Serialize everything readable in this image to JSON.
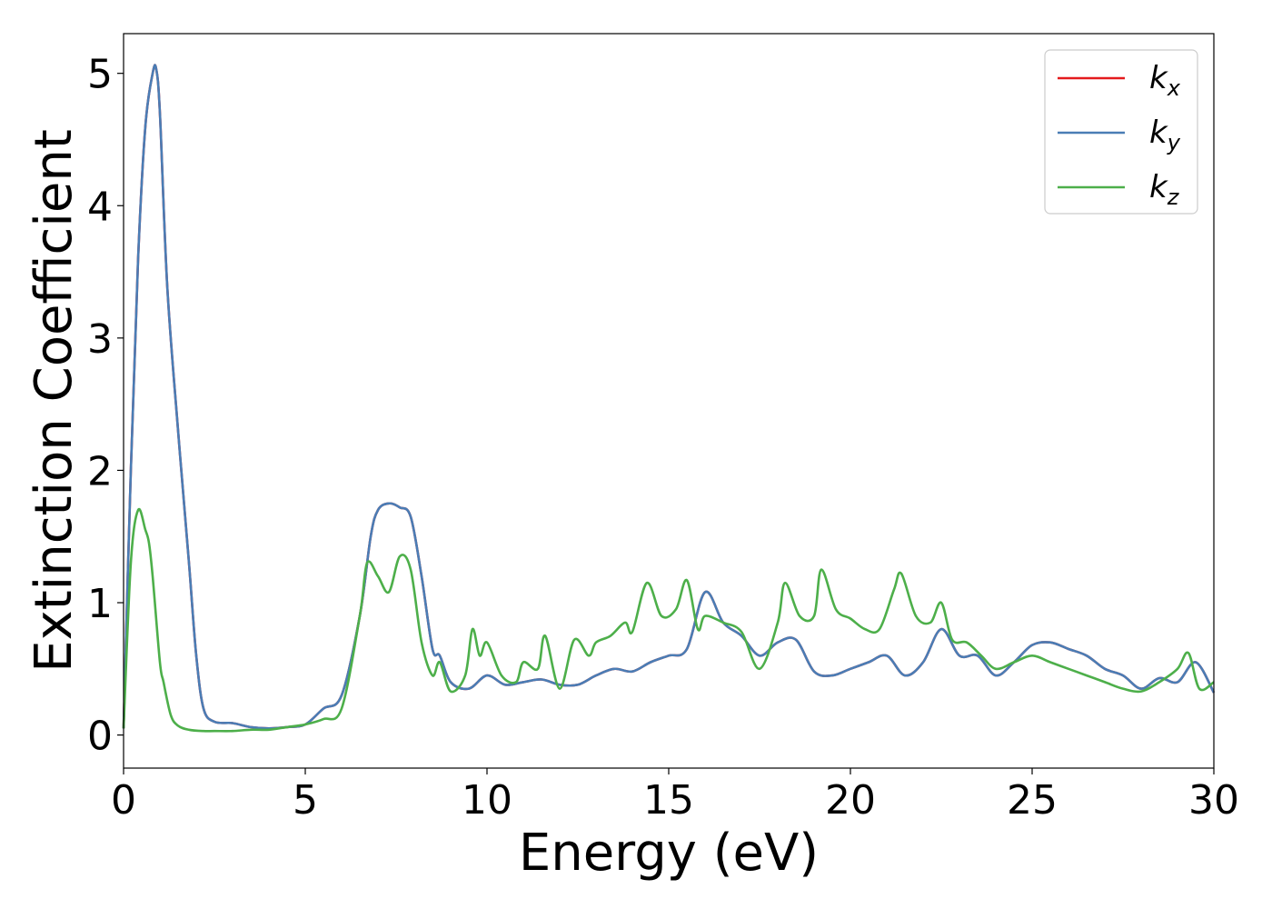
{
  "chart_data": {
    "type": "line",
    "xlabel": "Energy (eV)",
    "ylabel": "Extinction Coefficient",
    "xlim": [
      0,
      30
    ],
    "ylim": [
      -0.25,
      5.3
    ],
    "xticks": [
      0,
      5,
      10,
      15,
      20,
      25,
      30
    ],
    "yticks": [
      0,
      1,
      2,
      3,
      4,
      5
    ],
    "grid": false,
    "legend_position": "top-right",
    "series": [
      {
        "name": "k",
        "sub": "x",
        "color": "#e41a1c",
        "x": [
          0,
          0.2,
          0.4,
          0.6,
          0.8,
          0.9,
          1.0,
          1.2,
          1.5,
          1.8,
          2.0,
          2.2,
          2.5,
          3.0,
          3.5,
          4.0,
          4.5,
          5.0,
          5.5,
          6.0,
          6.5,
          6.8,
          7.0,
          7.3,
          7.6,
          7.9,
          8.2,
          8.5,
          8.7,
          9.0,
          9.5,
          10.0,
          10.5,
          11.0,
          11.5,
          12.0,
          12.5,
          13.0,
          13.5,
          14.0,
          14.5,
          15.0,
          15.5,
          16.0,
          16.5,
          17.0,
          17.5,
          18.0,
          18.5,
          19.0,
          19.5,
          20.0,
          20.5,
          21.0,
          21.5,
          22.0,
          22.5,
          23.0,
          23.5,
          24.0,
          24.5,
          25.0,
          25.5,
          26.0,
          26.5,
          27.0,
          27.5,
          28.0,
          28.5,
          29.0,
          29.5,
          30.0
        ],
        "y": [
          0.05,
          2.0,
          3.6,
          4.6,
          5.0,
          5.03,
          4.7,
          3.4,
          2.3,
          1.3,
          0.6,
          0.2,
          0.1,
          0.09,
          0.06,
          0.05,
          0.06,
          0.08,
          0.2,
          0.3,
          0.9,
          1.5,
          1.7,
          1.75,
          1.72,
          1.65,
          1.2,
          0.65,
          0.6,
          0.4,
          0.35,
          0.45,
          0.38,
          0.4,
          0.42,
          0.38,
          0.38,
          0.45,
          0.5,
          0.48,
          0.55,
          0.6,
          0.65,
          1.08,
          0.85,
          0.75,
          0.6,
          0.7,
          0.72,
          0.48,
          0.45,
          0.5,
          0.55,
          0.6,
          0.45,
          0.55,
          0.8,
          0.6,
          0.6,
          0.45,
          0.55,
          0.68,
          0.7,
          0.65,
          0.6,
          0.5,
          0.45,
          0.35,
          0.43,
          0.4,
          0.55,
          0.32
        ]
      },
      {
        "name": "k",
        "sub": "y",
        "color": "#4a7db5",
        "x": [
          0,
          0.2,
          0.4,
          0.6,
          0.8,
          0.9,
          1.0,
          1.2,
          1.5,
          1.8,
          2.0,
          2.2,
          2.5,
          3.0,
          3.5,
          4.0,
          4.5,
          5.0,
          5.5,
          6.0,
          6.5,
          6.8,
          7.0,
          7.3,
          7.6,
          7.9,
          8.2,
          8.5,
          8.7,
          9.0,
          9.5,
          10.0,
          10.5,
          11.0,
          11.5,
          12.0,
          12.5,
          13.0,
          13.5,
          14.0,
          14.5,
          15.0,
          15.5,
          16.0,
          16.5,
          17.0,
          17.5,
          18.0,
          18.5,
          19.0,
          19.5,
          20.0,
          20.5,
          21.0,
          21.5,
          22.0,
          22.5,
          23.0,
          23.5,
          24.0,
          24.5,
          25.0,
          25.5,
          26.0,
          26.5,
          27.0,
          27.5,
          28.0,
          28.5,
          29.0,
          29.5,
          30.0
        ],
        "y": [
          0.05,
          2.0,
          3.6,
          4.6,
          5.0,
          5.03,
          4.7,
          3.4,
          2.3,
          1.3,
          0.6,
          0.2,
          0.1,
          0.09,
          0.06,
          0.05,
          0.06,
          0.08,
          0.2,
          0.3,
          0.9,
          1.5,
          1.7,
          1.75,
          1.72,
          1.65,
          1.2,
          0.65,
          0.6,
          0.4,
          0.35,
          0.45,
          0.38,
          0.4,
          0.42,
          0.38,
          0.38,
          0.45,
          0.5,
          0.48,
          0.55,
          0.6,
          0.65,
          1.08,
          0.85,
          0.75,
          0.6,
          0.7,
          0.72,
          0.48,
          0.45,
          0.5,
          0.55,
          0.6,
          0.45,
          0.55,
          0.8,
          0.6,
          0.6,
          0.45,
          0.55,
          0.68,
          0.7,
          0.65,
          0.6,
          0.5,
          0.45,
          0.35,
          0.43,
          0.4,
          0.55,
          0.32
        ]
      },
      {
        "name": "k",
        "sub": "z",
        "color": "#4daf4a",
        "x": [
          0,
          0.2,
          0.4,
          0.6,
          0.7,
          0.8,
          1.0,
          1.1,
          1.3,
          1.5,
          1.8,
          2.2,
          2.5,
          3.0,
          3.5,
          4.0,
          4.5,
          5.0,
          5.5,
          6.0,
          6.5,
          6.7,
          7.0,
          7.3,
          7.6,
          7.9,
          8.2,
          8.5,
          8.7,
          9.0,
          9.4,
          9.6,
          9.8,
          10.0,
          10.4,
          10.8,
          11.0,
          11.4,
          11.6,
          12.0,
          12.4,
          12.8,
          13.0,
          13.4,
          13.8,
          14.0,
          14.4,
          14.8,
          15.2,
          15.5,
          15.8,
          16.0,
          16.5,
          17.0,
          17.5,
          18.0,
          18.2,
          18.6,
          19.0,
          19.2,
          19.6,
          20.0,
          20.4,
          20.8,
          21.2,
          21.4,
          21.8,
          22.2,
          22.5,
          22.8,
          23.2,
          23.6,
          24.0,
          24.5,
          25.0,
          25.5,
          26.0,
          26.5,
          27.0,
          27.5,
          28.0,
          28.5,
          29.0,
          29.3,
          29.6,
          30.0
        ],
        "y": [
          0.05,
          1.3,
          1.7,
          1.55,
          1.45,
          1.2,
          0.55,
          0.4,
          0.15,
          0.07,
          0.04,
          0.03,
          0.03,
          0.03,
          0.04,
          0.04,
          0.06,
          0.08,
          0.12,
          0.2,
          0.9,
          1.3,
          1.2,
          1.08,
          1.35,
          1.25,
          0.7,
          0.45,
          0.55,
          0.33,
          0.45,
          0.8,
          0.6,
          0.7,
          0.45,
          0.4,
          0.55,
          0.5,
          0.75,
          0.35,
          0.72,
          0.6,
          0.7,
          0.75,
          0.85,
          0.78,
          1.15,
          0.9,
          0.95,
          1.17,
          0.8,
          0.9,
          0.85,
          0.78,
          0.5,
          0.85,
          1.15,
          0.9,
          0.9,
          1.25,
          0.95,
          0.88,
          0.8,
          0.8,
          1.1,
          1.22,
          0.9,
          0.85,
          1.0,
          0.72,
          0.7,
          0.6,
          0.5,
          0.55,
          0.6,
          0.55,
          0.5,
          0.45,
          0.4,
          0.35,
          0.33,
          0.4,
          0.5,
          0.62,
          0.35,
          0.4
        ]
      }
    ]
  }
}
